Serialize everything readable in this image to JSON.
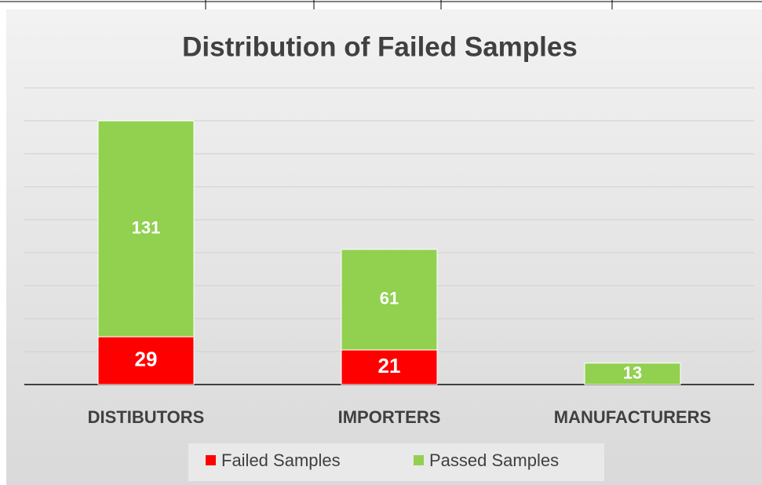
{
  "chart_data": {
    "type": "stacked_bar",
    "title": "Distribution of Failed Samples",
    "categories": [
      "DISTIBUTORS",
      "IMPORTERS",
      "MANUFACTURERS"
    ],
    "series": [
      {
        "name": "Failed Samples",
        "color": "#ff0000",
        "values": [
          29,
          21,
          0
        ]
      },
      {
        "name": "Passed Samples",
        "color": "#92d050",
        "values": [
          131,
          61,
          13
        ]
      }
    ],
    "ylim": [
      0,
      180
    ],
    "yticks": [
      0,
      20,
      40,
      60,
      80,
      100,
      120,
      140,
      160,
      180
    ],
    "grid": true,
    "legend": "bottom"
  }
}
